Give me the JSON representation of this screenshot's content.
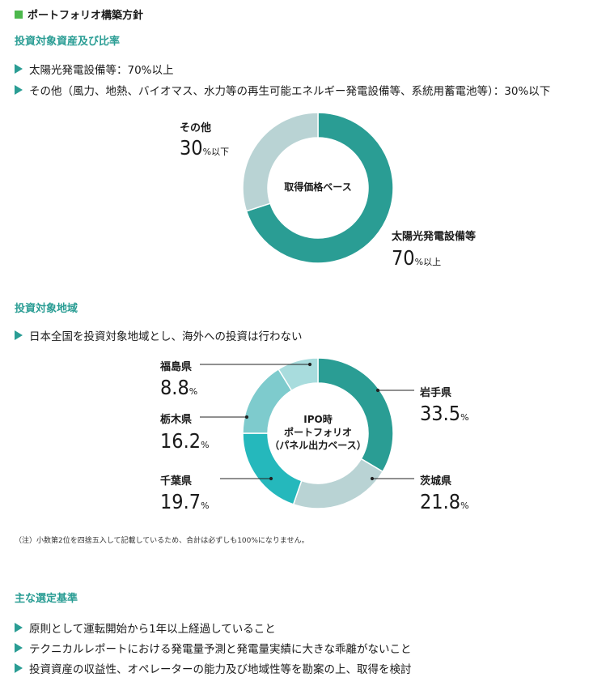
{
  "page": {
    "title": "ポートフォリオ構築方針",
    "accent_color": "#2a9d94",
    "title_marker_color": "#4cb84c"
  },
  "section1": {
    "heading": "投資対象資産及び比率",
    "bullets": [
      "太陽光発電設備等：70%以上",
      "その他（風力、地熱、バイオマス、水力等の再生可能エネルギー発電設備等、系統用蓄電池等）：30%以下"
    ]
  },
  "section2": {
    "heading": "投資対象地域",
    "bullets": [
      "日本全国を投資対象地域とし、海外への投資は行わない"
    ],
    "note": "（注）小数第2位を四捨五入して記載しているため、合計は必ずしも100%になりません。"
  },
  "section3": {
    "heading": "主な選定基準",
    "bullets": [
      "原則として運転開始から1年以上経過していること",
      "テクニカルレポートにおける発電量予測と発電量実績に大きな乖離がないこと",
      "投資資産の収益性、オペレーターの能力及び地域性等を勘案の上、取得を検討"
    ]
  },
  "chart_data": [
    {
      "type": "pie",
      "center_label": "取得価格ベース",
      "categories": [
        "太陽光発電設備等",
        "その他"
      ],
      "values": [
        70,
        30
      ],
      "value_labels": [
        {
          "name": "太陽光発電設備等",
          "value": "70",
          "unit": "%以上"
        },
        {
          "name": "その他",
          "value": "30",
          "unit": "%以下"
        }
      ],
      "colors": [
        "#2a9d94",
        "#b9d3d4"
      ]
    },
    {
      "type": "pie",
      "center_label": [
        "IPO時",
        "ポートフォリオ",
        "（パネル出力ベース）"
      ],
      "categories": [
        "岩手県",
        "茨城県",
        "千葉県",
        "栃木県",
        "福島県"
      ],
      "values": [
        33.5,
        21.8,
        19.7,
        16.2,
        8.8
      ],
      "value_labels": [
        {
          "name": "岩手県",
          "value": "33.5",
          "unit": "%"
        },
        {
          "name": "茨城県",
          "value": "21.8",
          "unit": "%"
        },
        {
          "name": "千葉県",
          "value": "19.7",
          "unit": "%"
        },
        {
          "name": "栃木県",
          "value": "16.2",
          "unit": "%"
        },
        {
          "name": "福島県",
          "value": "8.8",
          "unit": "%"
        }
      ],
      "colors": [
        "#2a9d94",
        "#b9d3d4",
        "#25b8bc",
        "#7ecbcd",
        "#a8dcdd"
      ]
    }
  ]
}
